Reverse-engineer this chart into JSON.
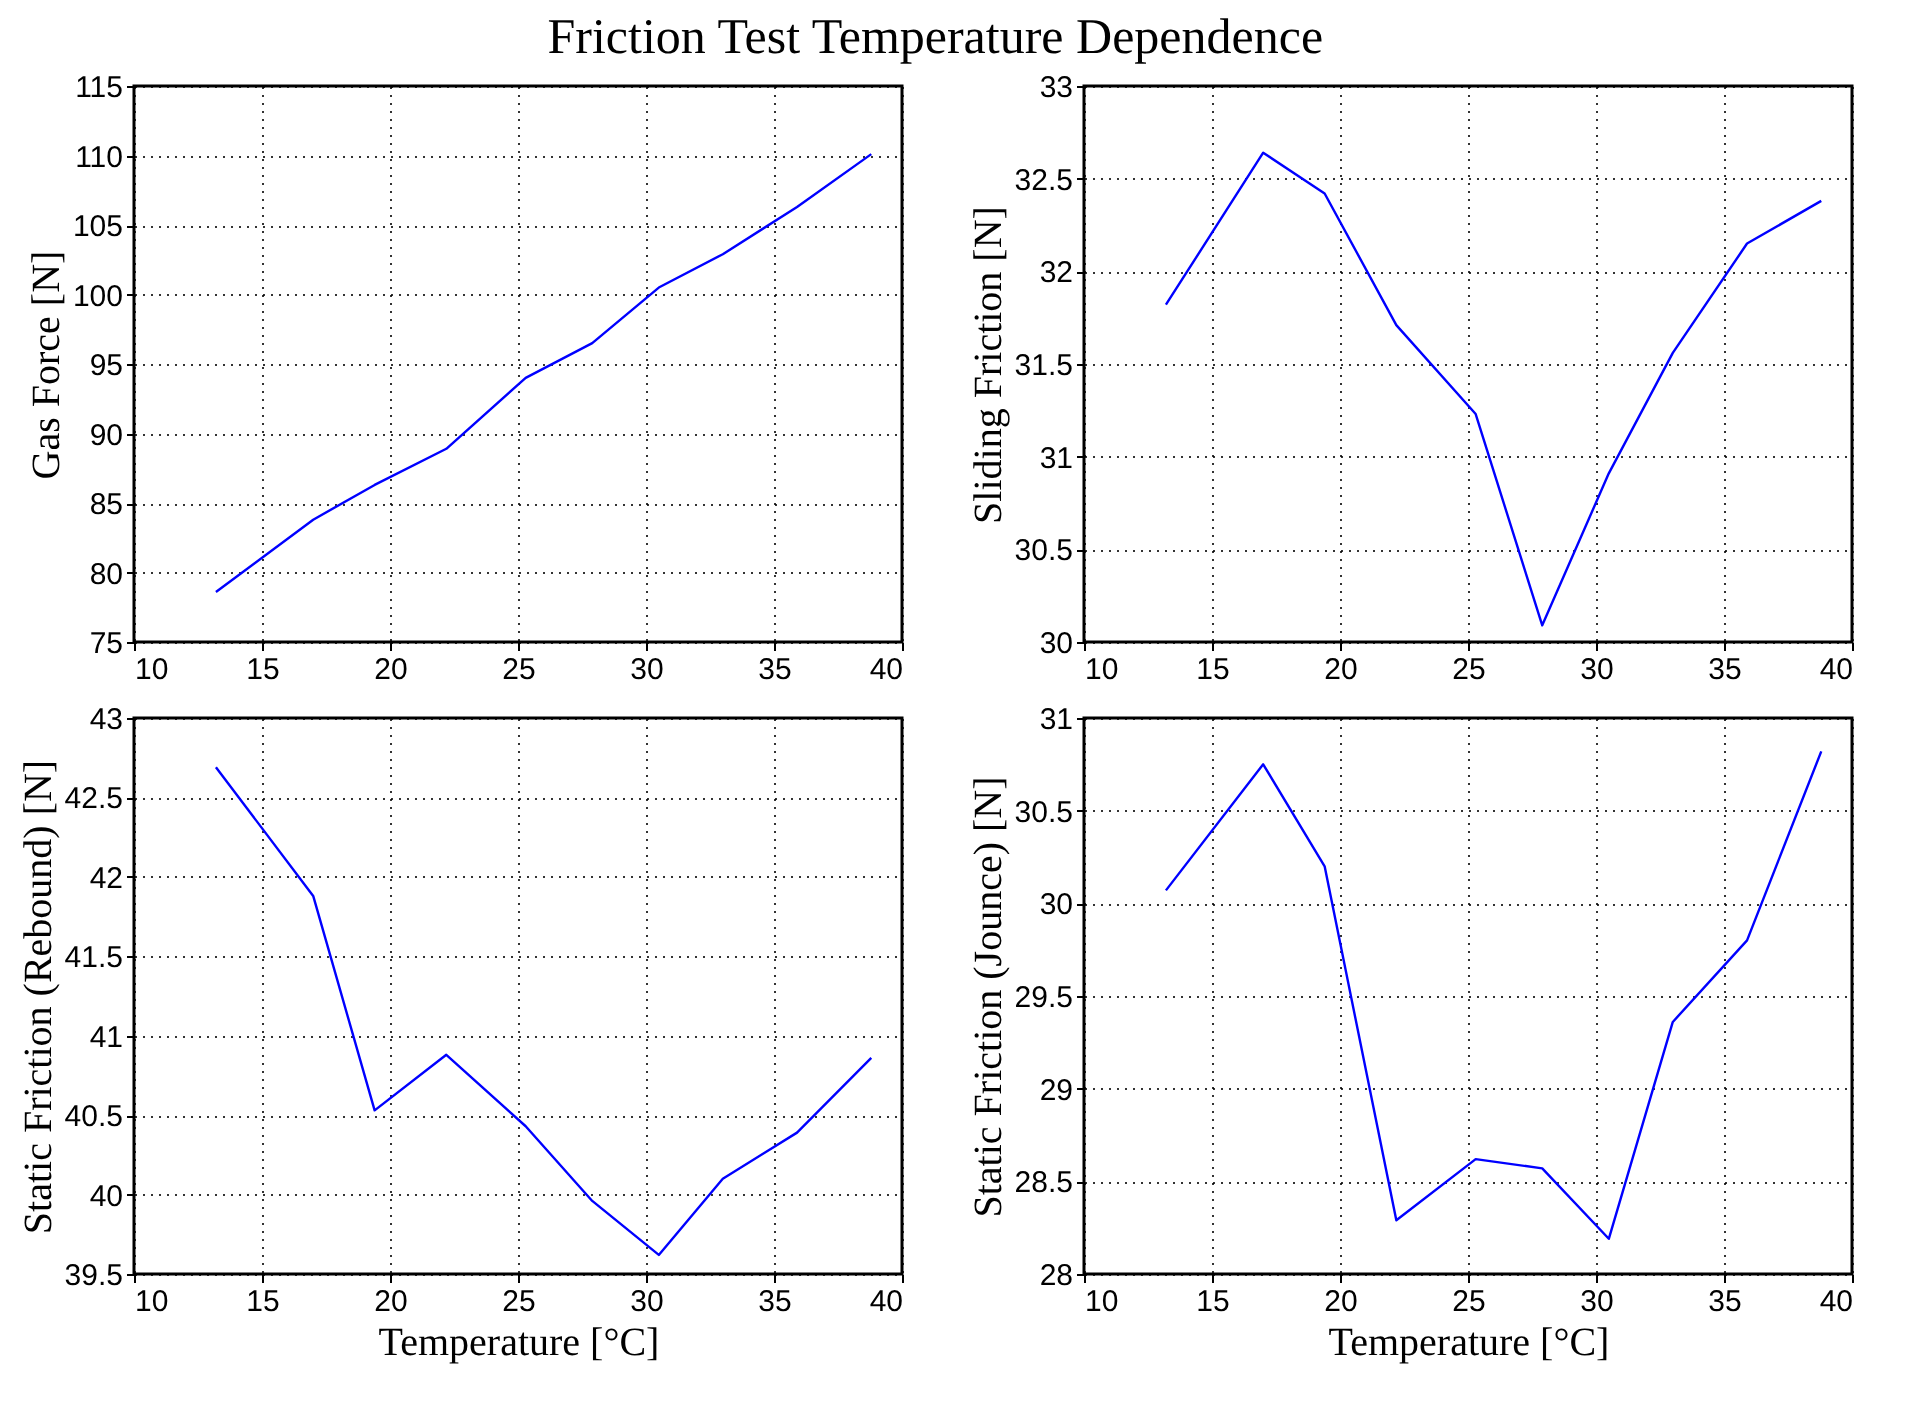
{
  "chart_data": [
    {
      "type": "line",
      "title": "Friction Test Temperature Dependence",
      "ylabel": "Gas Force [N]",
      "x": [
        13.2,
        17.0,
        19.4,
        22.2,
        25.3,
        27.9,
        30.5,
        33.0,
        35.9,
        38.8
      ],
      "series": [
        {
          "color": "#0000ff",
          "values": [
            78.6,
            83.8,
            86.3,
            88.9,
            94.0,
            96.5,
            100.5,
            102.9,
            106.3,
            110.1
          ]
        }
      ],
      "xlim": [
        10,
        40
      ],
      "xticks": [
        10,
        15,
        20,
        25,
        30,
        35,
        40
      ],
      "ylim": [
        75,
        115
      ],
      "yticks": [
        75,
        80,
        85,
        90,
        95,
        100,
        105,
        110,
        115
      ],
      "grid": true
    },
    {
      "type": "line",
      "ylabel": "Sliding Friction [N]",
      "x": [
        13.2,
        17.0,
        19.4,
        22.2,
        25.3,
        27.9,
        30.5,
        33.0,
        35.9,
        38.8
      ],
      "series": [
        {
          "color": "#0000ff",
          "values": [
            31.82,
            32.64,
            32.42,
            31.71,
            31.23,
            30.09,
            30.91,
            31.56,
            32.15,
            32.38
          ]
        }
      ],
      "xlim": [
        10,
        40
      ],
      "xticks": [
        10,
        15,
        20,
        25,
        30,
        35,
        40
      ],
      "ylim": [
        30,
        33
      ],
      "yticks": [
        30,
        30.5,
        31,
        31.5,
        32,
        32.5,
        33
      ],
      "grid": true
    },
    {
      "type": "line",
      "xlabel": "Temperature [°C]",
      "ylabel": "Static Friction (Rebound) [N]",
      "x": [
        13.2,
        17.0,
        19.4,
        22.2,
        25.3,
        27.9,
        30.5,
        33.0,
        35.9,
        38.8
      ],
      "series": [
        {
          "color": "#0000ff",
          "values": [
            42.69,
            41.88,
            40.53,
            40.88,
            40.43,
            39.96,
            39.62,
            40.1,
            40.39,
            40.86
          ]
        }
      ],
      "xlim": [
        10,
        40
      ],
      "xticks": [
        10,
        15,
        20,
        25,
        30,
        35,
        40
      ],
      "ylim": [
        39.5,
        43
      ],
      "yticks": [
        39.5,
        40,
        40.5,
        41,
        41.5,
        42,
        42.5,
        43
      ],
      "grid": true
    },
    {
      "type": "line",
      "xlabel": "Temperature [°C]",
      "ylabel": "Static Friction (Jounce) [N]",
      "x": [
        13.2,
        17.0,
        19.4,
        22.2,
        25.3,
        27.9,
        30.5,
        33.0,
        35.9,
        38.8
      ],
      "series": [
        {
          "color": "#0000ff",
          "values": [
            30.07,
            30.75,
            30.2,
            28.29,
            28.62,
            28.57,
            28.19,
            29.36,
            29.8,
            30.82
          ]
        }
      ],
      "xlim": [
        10,
        40
      ],
      "xticks": [
        10,
        15,
        20,
        25,
        30,
        35,
        40
      ],
      "ylim": [
        28,
        31
      ],
      "yticks": [
        28,
        28.5,
        29,
        29.5,
        30,
        30.5,
        31
      ],
      "grid": true
    }
  ]
}
